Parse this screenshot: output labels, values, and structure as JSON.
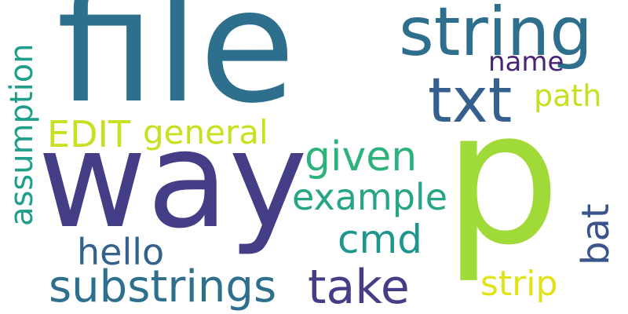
{
  "cloud": {
    "background": "#ffffff",
    "words": [
      {
        "text": "file",
        "color": "#2f6f8e"
      },
      {
        "text": "way",
        "color": "#433e85"
      },
      {
        "text": "p",
        "color": "#a0da39"
      },
      {
        "text": "string",
        "color": "#2f6f8e"
      },
      {
        "text": "txt",
        "color": "#355f8d"
      },
      {
        "text": "name",
        "color": "#482475"
      },
      {
        "text": "path",
        "color": "#c8e020"
      },
      {
        "text": "EDIT",
        "color": "#c8e020"
      },
      {
        "text": "general",
        "color": "#c8e020"
      },
      {
        "text": "given",
        "color": "#2db27d"
      },
      {
        "text": "example",
        "color": "#25a585"
      },
      {
        "text": "cmd",
        "color": "#1f968b"
      },
      {
        "text": "hello",
        "color": "#33638d"
      },
      {
        "text": "bat",
        "color": "#3a548c"
      },
      {
        "text": "assumption",
        "color": "#1f9e89"
      },
      {
        "text": "substrings",
        "color": "#2f6f8e"
      },
      {
        "text": "take",
        "color": "#433e85"
      },
      {
        "text": "strip",
        "color": "#dfe318"
      }
    ]
  }
}
